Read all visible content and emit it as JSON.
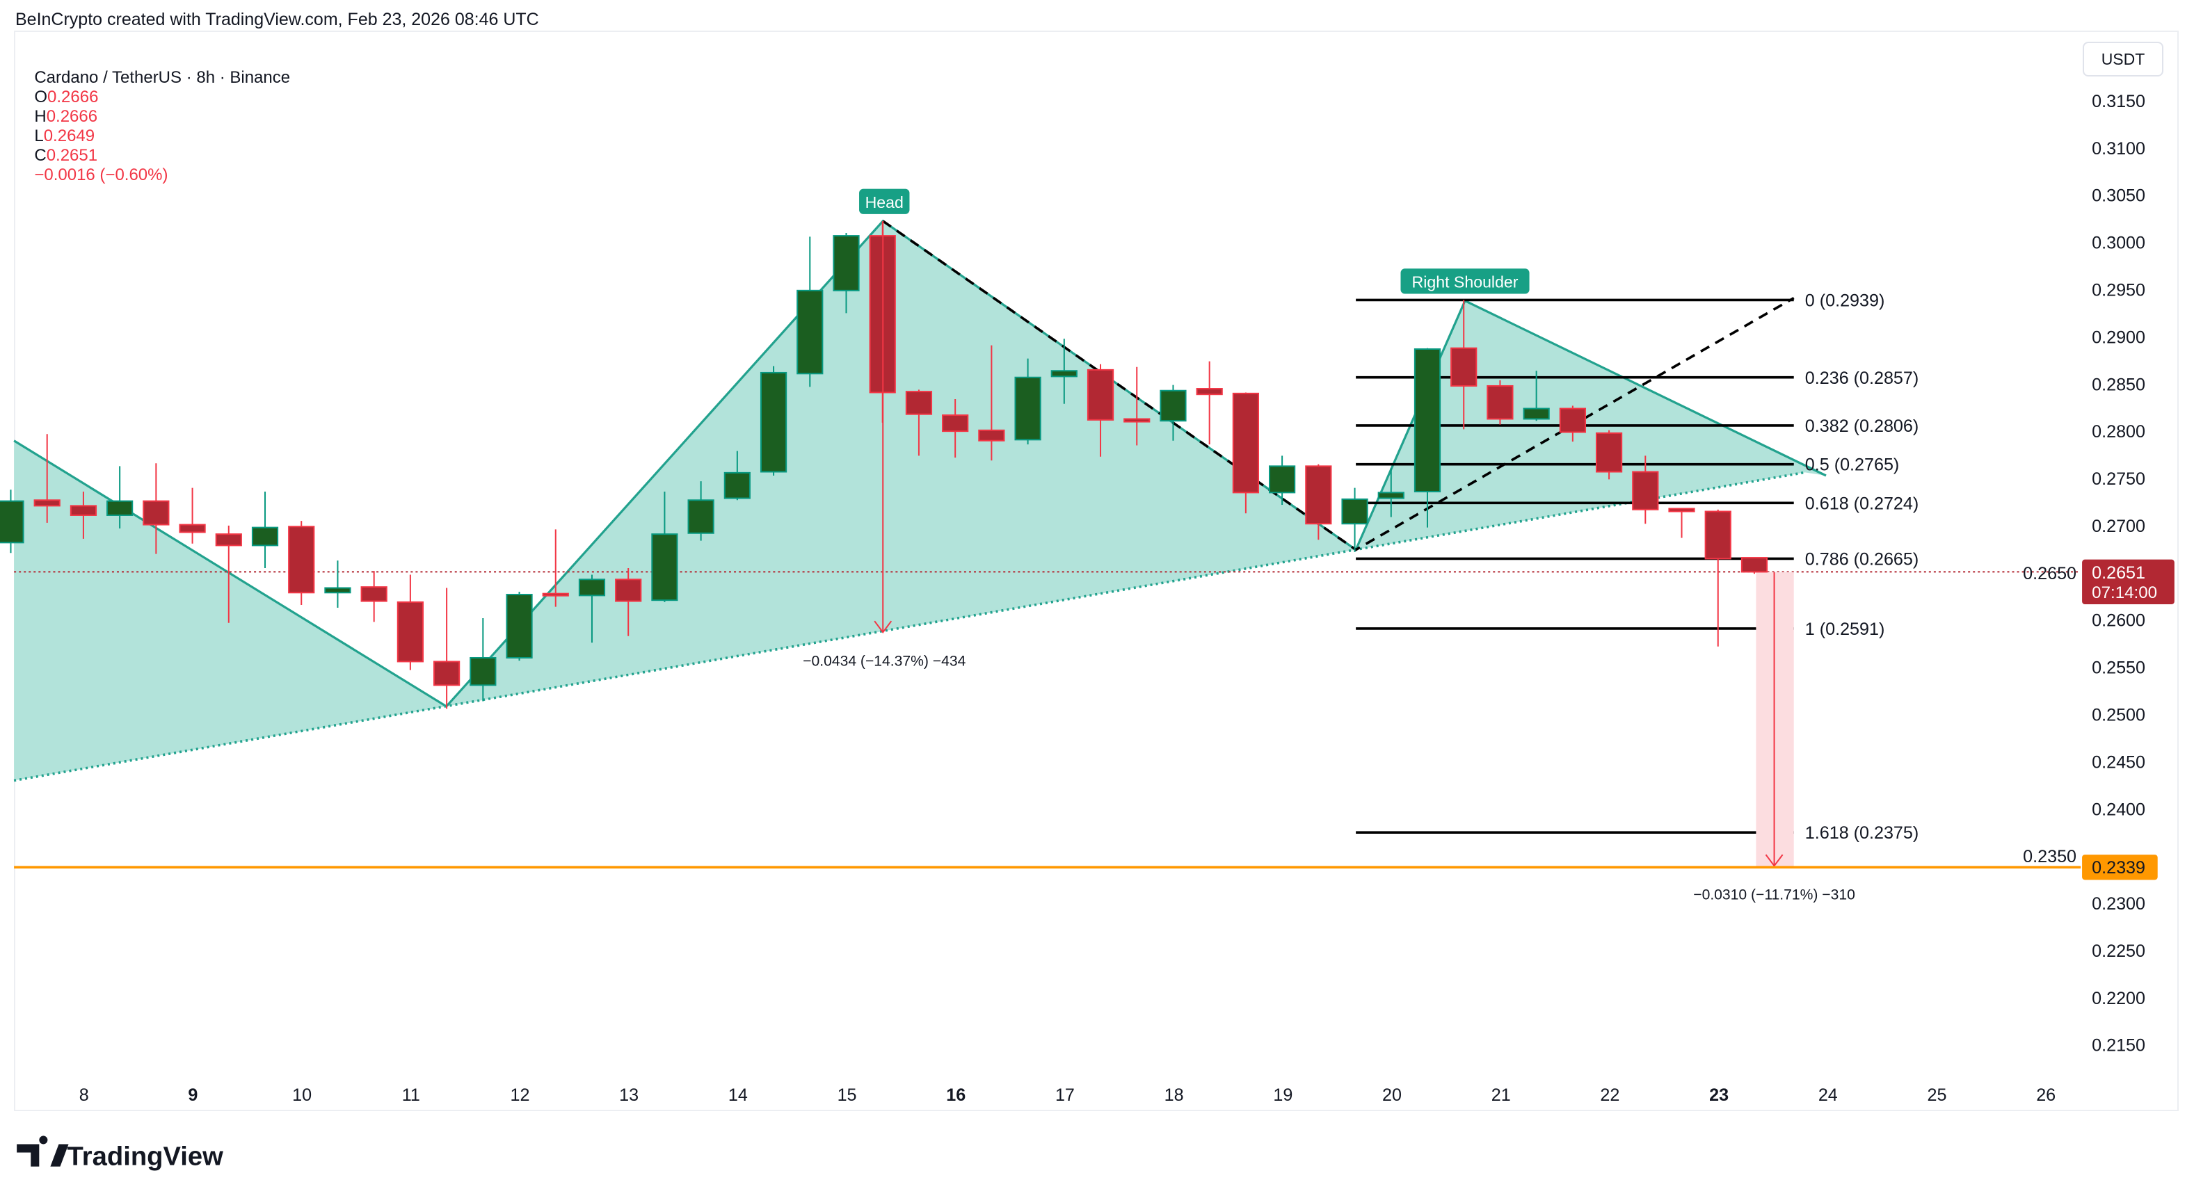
{
  "header": {
    "credit": "BeInCrypto created with TradingView.com, Feb 23, 2026 08:46 UTC",
    "symbol": "Cardano / TetherUS · 8h · Binance",
    "o_label": "O",
    "o_value": "0.2666",
    "h_label": "H",
    "h_value": "0.2666",
    "l_label": "L",
    "l_value": "0.2649",
    "c_label": "C",
    "c_value": "0.2651",
    "change": "−0.0016 (−0.60%)"
  },
  "currency_button": "USDT",
  "logo_text": "TradingView",
  "colors": {
    "up": "#1b5e20",
    "up_border": "#089981",
    "down": "#b22833",
    "down_border": "#f23645",
    "pattern_fill": "#b2e3da",
    "pattern_line": "#22a28e",
    "target_line": "#ff9800",
    "price_label": "#b22833"
  },
  "annotations": {
    "head": "Head",
    "right_shoulder": "Right Shoulder",
    "head_measure": "−0.0434 (−14.37%) −434",
    "target_measure": "−0.0310 (−11.71%) −310",
    "last_price": "0.2651",
    "countdown": "07:14:00",
    "target_price": "0.2339"
  },
  "chart_data": {
    "type": "candlestick",
    "title": "Cardano / TetherUS · 8h · Binance",
    "ylim": [
      0.21,
      0.32
    ],
    "y_ticks": [
      "0.3150",
      "0.3100",
      "0.3050",
      "0.3000",
      "0.2950",
      "0.2900",
      "0.2850",
      "0.2800",
      "0.2750",
      "0.2700",
      "0.2650",
      "0.2600",
      "0.2550",
      "0.2500",
      "0.2450",
      "0.2400",
      "0.2350",
      "0.2300",
      "0.2250",
      "0.2200",
      "0.2150"
    ],
    "x_ticks": [
      {
        "label": "8",
        "bold": false
      },
      {
        "label": "9",
        "bold": true
      },
      {
        "label": "10",
        "bold": false
      },
      {
        "label": "11",
        "bold": false
      },
      {
        "label": "12",
        "bold": false
      },
      {
        "label": "13",
        "bold": false
      },
      {
        "label": "14",
        "bold": false
      },
      {
        "label": "15",
        "bold": false
      },
      {
        "label": "16",
        "bold": true
      },
      {
        "label": "17",
        "bold": false
      },
      {
        "label": "18",
        "bold": false
      },
      {
        "label": "19",
        "bold": false
      },
      {
        "label": "20",
        "bold": false
      },
      {
        "label": "21",
        "bold": false
      },
      {
        "label": "22",
        "bold": false
      },
      {
        "label": "23",
        "bold": true
      },
      {
        "label": "24",
        "bold": false
      },
      {
        "label": "25",
        "bold": false
      },
      {
        "label": "26",
        "bold": false
      }
    ],
    "grid": false,
    "candles": [
      [
        0.2682,
        0.2738,
        0.2671,
        0.2726
      ],
      [
        0.2727,
        0.2797,
        0.2703,
        0.2721
      ],
      [
        0.2721,
        0.2736,
        0.2686,
        0.2711
      ],
      [
        0.2711,
        0.2763,
        0.2697,
        0.2726
      ],
      [
        0.2726,
        0.2766,
        0.267,
        0.2701
      ],
      [
        0.2701,
        0.274,
        0.2681,
        0.2693
      ],
      [
        0.2691,
        0.27,
        0.2597,
        0.2679
      ],
      [
        0.2679,
        0.2736,
        0.2655,
        0.2698
      ],
      [
        0.2699,
        0.2705,
        0.2616,
        0.2629
      ],
      [
        0.2629,
        0.2663,
        0.2613,
        0.2634
      ],
      [
        0.2635,
        0.2652,
        0.2598,
        0.262
      ],
      [
        0.2619,
        0.2648,
        0.2547,
        0.2556
      ],
      [
        0.2556,
        0.2634,
        0.2506,
        0.2531
      ],
      [
        0.2531,
        0.2602,
        0.2514,
        0.256
      ],
      [
        0.256,
        0.263,
        0.2557,
        0.2627
      ],
      [
        0.2628,
        0.2696,
        0.2614,
        0.2627
      ],
      [
        0.2626,
        0.2648,
        0.2576,
        0.2643
      ],
      [
        0.2643,
        0.2655,
        0.2583,
        0.262
      ],
      [
        0.2621,
        0.2736,
        0.2619,
        0.2691
      ],
      [
        0.2692,
        0.2747,
        0.2684,
        0.2727
      ],
      [
        0.2729,
        0.2779,
        0.2727,
        0.2756
      ],
      [
        0.2757,
        0.2869,
        0.2753,
        0.2862
      ],
      [
        0.2861,
        0.3006,
        0.2847,
        0.2949
      ],
      [
        0.2949,
        0.301,
        0.2925,
        0.3007
      ],
      [
        0.3007,
        0.3022,
        0.2809,
        0.2841
      ],
      [
        0.2842,
        0.2844,
        0.2774,
        0.2818
      ],
      [
        0.2817,
        0.2834,
        0.2772,
        0.28
      ],
      [
        0.2801,
        0.2891,
        0.2769,
        0.279
      ],
      [
        0.2791,
        0.2877,
        0.2786,
        0.2857
      ],
      [
        0.2858,
        0.2898,
        0.2829,
        0.2864
      ],
      [
        0.2865,
        0.2871,
        0.2773,
        0.2812
      ],
      [
        0.2813,
        0.2868,
        0.2785,
        0.281
      ],
      [
        0.2811,
        0.2849,
        0.279,
        0.2843
      ],
      [
        0.2845,
        0.2874,
        0.2786,
        0.2839
      ],
      [
        0.284,
        0.2841,
        0.2713,
        0.2735
      ],
      [
        0.2735,
        0.2774,
        0.2722,
        0.2763
      ],
      [
        0.2763,
        0.2765,
        0.2685,
        0.2702
      ],
      [
        0.2702,
        0.274,
        0.2672,
        0.2728
      ],
      [
        0.2729,
        0.2761,
        0.2709,
        0.2735
      ],
      [
        0.2736,
        0.2888,
        0.2698,
        0.2887
      ],
      [
        0.2888,
        0.2939,
        0.2802,
        0.2848
      ],
      [
        0.2848,
        0.2854,
        0.2807,
        0.2813
      ],
      [
        0.2813,
        0.2864,
        0.2811,
        0.2824
      ],
      [
        0.2824,
        0.2827,
        0.2789,
        0.2799
      ],
      [
        0.2798,
        0.2801,
        0.2749,
        0.2757
      ],
      [
        0.2757,
        0.2774,
        0.2702,
        0.2717
      ],
      [
        0.2718,
        0.2718,
        0.2687,
        0.2715
      ],
      [
        0.2715,
        0.2717,
        0.2572,
        0.2665
      ],
      [
        0.2666,
        0.2666,
        0.2649,
        0.2651
      ]
    ],
    "fib_levels": [
      {
        "ratio": "0",
        "price": 0.2939,
        "label": "0 (0.2939)"
      },
      {
        "ratio": "0.236",
        "price": 0.2857,
        "label": "0.236 (0.2857)"
      },
      {
        "ratio": "0.382",
        "price": 0.2806,
        "label": "0.382 (0.2806)"
      },
      {
        "ratio": "0.5",
        "price": 0.2765,
        "label": "0.5 (0.2765)"
      },
      {
        "ratio": "0.618",
        "price": 0.2724,
        "label": "0.618 (0.2724)"
      },
      {
        "ratio": "0.786",
        "price": 0.2665,
        "label": "0.786 (0.2665)"
      },
      {
        "ratio": "1",
        "price": 0.2591,
        "label": "1 (0.2591)"
      },
      {
        "ratio": "1.618",
        "price": 0.2375,
        "label": "1.618 (0.2375)"
      }
    ],
    "last_price": 0.2651,
    "target_price": 0.2339
  }
}
